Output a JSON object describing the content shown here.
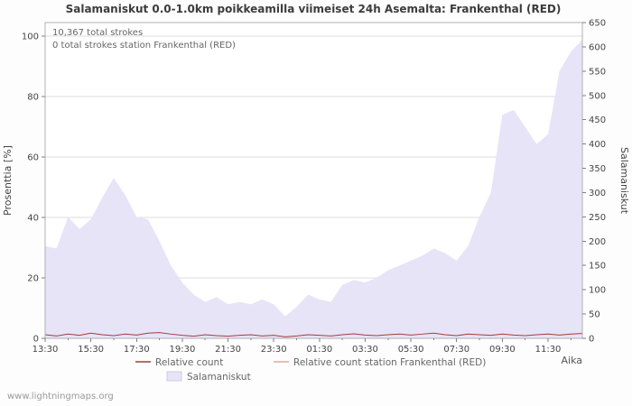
{
  "chart": {
    "title": "Salamaniskut 0.0-1.0km poikkeamilla viimeiset 24h Asemalta: Frankenthal (RED)",
    "annotations": {
      "total_strokes": "10,367 total strokes",
      "station_strokes": "0 total strokes station Frankenthal (RED)"
    },
    "left_axis_label": "Prosenttia   [%]",
    "right_axis_label": "Salamaniskut",
    "x_axis_label": "Aika",
    "watermark": "www.lightningmaps.org"
  },
  "legend": [
    {
      "label": "Relative count",
      "color": "#a33c3c",
      "swatch": "line"
    },
    {
      "label": "Relative count station Frankenthal (RED)",
      "color": "#eaa898",
      "swatch": "line"
    },
    {
      "label": "Salamaniskut",
      "color": "#e7e4f8",
      "swatch": "area"
    }
  ],
  "chart_data": {
    "type": "area",
    "title": "Salamaniskut 0.0-1.0km poikkeamilla viimeiset 24h Asemalta: Frankenthal (RED)",
    "x_ticks": [
      "13:30",
      "15:30",
      "17:30",
      "19:30",
      "21:30",
      "23:30",
      "01:30",
      "03:30",
      "05:30",
      "07:30",
      "09:30",
      "11:30"
    ],
    "x_tick_step": 4,
    "xlabel": "Aika",
    "left_ylabel": "Prosenttia [%]",
    "right_ylabel": "Salamaniskut",
    "left_ylim": [
      0,
      104.5
    ],
    "left_yticks": [
      0,
      20,
      40,
      60,
      80,
      100
    ],
    "right_ylim": [
      0,
      650
    ],
    "right_yticks": [
      0,
      50,
      100,
      150,
      200,
      250,
      300,
      350,
      400,
      450,
      500,
      550,
      600,
      650
    ],
    "grid": "horizontal",
    "legend_position": "bottom",
    "series": [
      {
        "name": "Salamaniskut",
        "axis": "right",
        "type": "area",
        "color": "#e7e4f8",
        "values": [
          190,
          185,
          250,
          225,
          245,
          290,
          330,
          295,
          250,
          245,
          200,
          150,
          115,
          90,
          75,
          85,
          70,
          75,
          70,
          80,
          70,
          45,
          65,
          90,
          80,
          75,
          110,
          120,
          115,
          125,
          140,
          150,
          160,
          170,
          185,
          175,
          160,
          190,
          250,
          300,
          460,
          470,
          435,
          400,
          420,
          550,
          590,
          615
        ]
      },
      {
        "name": "Relative count",
        "axis": "left",
        "type": "line",
        "color": "#a33c3c",
        "values": [
          1.2,
          0.8,
          1.4,
          1.0,
          1.7,
          1.2,
          0.9,
          1.4,
          1.1,
          1.7,
          1.9,
          1.4,
          1.0,
          0.7,
          1.2,
          0.9,
          0.7,
          1.0,
          1.2,
          0.8,
          1.0,
          0.5,
          0.8,
          1.2,
          1.0,
          0.8,
          1.2,
          1.5,
          1.1,
          0.9,
          1.2,
          1.4,
          1.1,
          1.4,
          1.7,
          1.2,
          0.9,
          1.4,
          1.2,
          1.0,
          1.4,
          1.1,
          0.9,
          1.2,
          1.4,
          1.1,
          1.4,
          1.6
        ]
      },
      {
        "name": "Relative count station Frankenthal (RED)",
        "axis": "left",
        "type": "line",
        "color": "#eaa898",
        "values": [
          0,
          0,
          0,
          0,
          0,
          0,
          0,
          0,
          0,
          0,
          0,
          0,
          0,
          0,
          0,
          0,
          0,
          0,
          0,
          0,
          0,
          0,
          0,
          0,
          0,
          0,
          0,
          0,
          0,
          0,
          0,
          0,
          0,
          0,
          0,
          0,
          0,
          0,
          0,
          0,
          0,
          0,
          0,
          0,
          0,
          0,
          0,
          0
        ]
      }
    ]
  }
}
